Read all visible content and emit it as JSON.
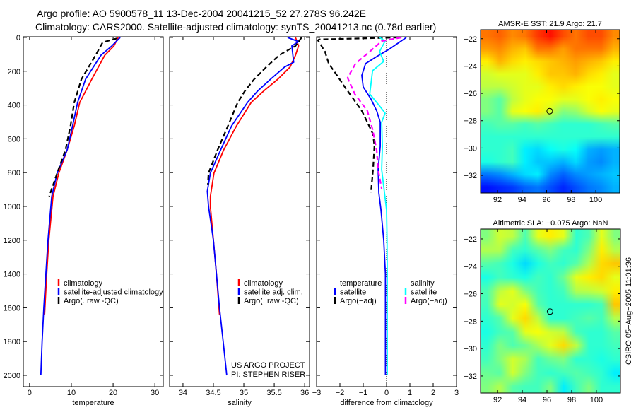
{
  "title": {
    "line1": "Argo profile: AO 5900578_11 13-Dec-2004 20041215_52 27.278S 96.242E",
    "line2": "Climatology: CARS2000. Satellite-adjusted climatology: synTS_20041213.nc (0.78d earlier)"
  },
  "credits": {
    "project": "US ARGO PROJECT",
    "pi": "PI: STEPHEN RISER",
    "stamp": "CSIRO 05−Aug−2005 11:01:36"
  },
  "chart_data": [
    {
      "type": "line",
      "id": "temperature",
      "xlabel": "temperature",
      "ylabel": "",
      "xlim": [
        -1.5,
        32
      ],
      "ylim": [
        2067,
        -4
      ],
      "xticks": [
        0,
        10,
        20,
        30
      ],
      "yticks": [
        0,
        200,
        400,
        600,
        800,
        1000,
        1200,
        1400,
        1600,
        1800,
        2000
      ],
      "legend": {
        "placement": "lower-left",
        "header": ""
      },
      "series": [
        {
          "name": "climatology",
          "color": "#ff0000",
          "dash": false,
          "depth": [
            0,
            50,
            105,
            247,
            385,
            523,
            665,
            803,
            941,
            1200,
            1400,
            1640
          ],
          "values": [
            21.2,
            20.2,
            18.0,
            14.9,
            12.0,
            10.7,
            9.0,
            7.0,
            5.6,
            4.6,
            4.1,
            3.6
          ]
        },
        {
          "name": "satellite-adjusted climatology",
          "color": "#0000ff",
          "dash": false,
          "depth": [
            0,
            50,
            105,
            247,
            385,
            523,
            665,
            803,
            941,
            1200,
            1400,
            1600,
            1800,
            2000
          ],
          "values": [
            21.7,
            19.7,
            17.1,
            13.4,
            11.5,
            10.3,
            9.0,
            6.6,
            5.3,
            4.4,
            3.9,
            3.4,
            3.0,
            2.7
          ]
        },
        {
          "name": "Argo(..raw -QC)",
          "color": "#000000",
          "dash": true,
          "depth": [
            5,
            29,
            105,
            247,
            385,
            523,
            665,
            803,
            941
          ],
          "values": [
            21.0,
            17.5,
            15.8,
            12.4,
            10.7,
            9.8,
            8.6,
            6.6,
            4.7
          ]
        }
      ]
    },
    {
      "type": "line",
      "id": "salinity",
      "xlabel": "salinity",
      "xlim": [
        33.78,
        36.08
      ],
      "ylim": [
        2067,
        -4
      ],
      "xticks": [
        34,
        34.5,
        35,
        35.5,
        36
      ],
      "yticks": [
        0,
        200,
        400,
        600,
        800,
        1000,
        1200,
        1400,
        1600,
        1800,
        2000
      ],
      "legend": {
        "placement": "lower-right",
        "header": ""
      },
      "series": [
        {
          "name": "climatology",
          "color": "#ff0000",
          "dash": false,
          "depth": [
            0,
            50,
            105,
            175,
            247,
            316,
            385,
            523,
            665,
            803,
            941,
            1000,
            1200,
            1400,
            1640
          ],
          "values": [
            35.85,
            35.9,
            35.85,
            35.76,
            35.56,
            35.33,
            35.12,
            34.88,
            34.67,
            34.51,
            34.45,
            34.45,
            34.5,
            34.55,
            34.6
          ]
        },
        {
          "name": "satellite adj. clim.",
          "color": "#0000ff",
          "dash": false,
          "depth": [
            0,
            25,
            50,
            147,
            175,
            247,
            316,
            385,
            523,
            665,
            803,
            910,
            1000,
            1200,
            1400,
            1600,
            1800,
            2000
          ],
          "values": [
            35.72,
            35.9,
            35.79,
            35.82,
            35.67,
            35.44,
            35.23,
            35.06,
            34.8,
            34.62,
            34.45,
            34.4,
            34.42,
            34.5,
            34.55,
            34.6,
            34.66,
            34.72
          ]
        },
        {
          "name": "Argo(..raw -QC)",
          "color": "#000000",
          "dash": true,
          "depth": [
            0,
            50,
            105,
            175,
            247,
            316,
            385,
            523,
            665,
            803,
            870
          ],
          "values": [
            35.95,
            35.85,
            35.58,
            35.37,
            35.17,
            35.02,
            34.9,
            34.74,
            34.57,
            34.42,
            34.41
          ]
        }
      ]
    },
    {
      "type": "line",
      "id": "difference",
      "xlabel": "difference from climatology",
      "xlim": [
        -3,
        3
      ],
      "ylim": [
        2067,
        -4
      ],
      "xticks": [
        -3,
        -2,
        -1,
        0,
        1,
        2,
        3
      ],
      "yticks": [
        0,
        200,
        400,
        600,
        800,
        1000,
        1200,
        1400,
        1600,
        1800,
        2000
      ],
      "zero_line": true,
      "legend_groups": [
        {
          "header": "temperature",
          "placement": "lower-left",
          "items": [
            "satellite",
            "Argo(−adj)"
          ],
          "series_index": [
            0,
            1
          ]
        },
        {
          "header": "salinity",
          "placement": "lower-right",
          "items": [
            "satellite",
            "Argo(−adj)"
          ],
          "series_index": [
            2,
            3
          ]
        }
      ],
      "series": [
        {
          "name": "temperature satellite",
          "color": "#0000ff",
          "dash": false,
          "depth": [
            0,
            71,
            113,
            155,
            225,
            293,
            364,
            435,
            502,
            644,
            782,
            920,
            1020,
            1200,
            1400,
            1600,
            1800,
            2000
          ],
          "values": [
            0.85,
            0.1,
            -0.42,
            -0.9,
            -1.06,
            -1.0,
            -0.67,
            -0.42,
            -0.27,
            -0.27,
            -0.36,
            -0.33,
            -0.24,
            -0.12,
            -0.05,
            -0.05,
            -0.05,
            -0.05
          ]
        },
        {
          "name": "temperature Argo(−adj)",
          "color": "#000000",
          "dash": true,
          "depth": [
            0,
            12,
            17,
            84,
            155,
            225,
            293,
            364,
            435,
            502,
            573,
            644,
            782,
            920
          ],
          "values": [
            0.5,
            -2.9,
            -2.94,
            -2.64,
            -2.48,
            -2.12,
            -1.79,
            -1.42,
            -1.06,
            -0.82,
            -0.58,
            -0.52,
            -0.58,
            -0.67
          ]
        },
        {
          "name": "salinity satellite",
          "color": "#00ffff",
          "dash": false,
          "depth": [
            0,
            21,
            84,
            142,
            197,
            335,
            405,
            448,
            502,
            644,
            782,
            1020,
            1200,
            1400,
            1600,
            1800,
            2000
          ],
          "values": [
            -0.3,
            -0.06,
            -0.3,
            -0.12,
            -0.6,
            -0.72,
            -0.3,
            -0.06,
            -0.21,
            -0.18,
            -0.21,
            0,
            0.02,
            0.03,
            0.03,
            0.03,
            0.03
          ]
        },
        {
          "name": "salinity Argo(−adj)",
          "color": "#ff00ff",
          "dash": true,
          "depth": [
            0,
            21,
            84,
            155,
            239,
            335,
            435,
            544,
            670,
            782,
            895
          ],
          "values": [
            0.64,
            -0.2,
            -0.72,
            -1.33,
            -1.67,
            -1.36,
            -0.82,
            -0.6,
            -0.42,
            -0.36,
            -0.21
          ]
        }
      ]
    },
    {
      "type": "heatmap",
      "id": "sst-map",
      "title": "AMSR-E SST: 21.9 Argo: 21.7",
      "xlim": [
        90.62,
        101.95
      ],
      "ylim": [
        -33.29,
        -21.34
      ],
      "xticks": [
        92,
        94,
        96,
        98,
        100
      ],
      "yticks": [
        -22,
        -24,
        -26,
        -28,
        -30,
        -32
      ],
      "marker": {
        "lon": 96.25,
        "lat": -27.3
      },
      "colormap": "jet",
      "z_normalized": [
        [
          0.76,
          0.78,
          0.74,
          0.76,
          0.82,
          0.86,
          0.8,
          0.76,
          0.8,
          0.8,
          0.74
        ],
        [
          0.72,
          0.74,
          0.7,
          0.68,
          0.76,
          0.76,
          0.72,
          0.76,
          0.76,
          0.76,
          0.7
        ],
        [
          0.64,
          0.7,
          0.66,
          0.64,
          0.66,
          0.68,
          0.7,
          0.72,
          0.7,
          0.68,
          0.64
        ],
        [
          0.58,
          0.6,
          0.6,
          0.6,
          0.64,
          0.68,
          0.68,
          0.7,
          0.66,
          0.64,
          0.6
        ],
        [
          0.56,
          0.56,
          0.58,
          0.6,
          0.6,
          0.64,
          0.66,
          0.64,
          0.62,
          0.62,
          0.6
        ],
        [
          0.5,
          0.46,
          0.56,
          0.6,
          0.62,
          0.62,
          0.6,
          0.6,
          0.62,
          0.64,
          0.62
        ],
        [
          0.5,
          0.46,
          0.6,
          0.62,
          0.64,
          0.58,
          0.5,
          0.52,
          0.58,
          0.62,
          0.6
        ],
        [
          0.44,
          0.46,
          0.46,
          0.44,
          0.46,
          0.44,
          0.42,
          0.42,
          0.42,
          0.44,
          0.46
        ],
        [
          0.42,
          0.42,
          0.42,
          0.42,
          0.42,
          0.42,
          0.42,
          0.42,
          0.42,
          0.42,
          0.42
        ],
        [
          0.42,
          0.42,
          0.44,
          0.36,
          0.34,
          0.38,
          0.4,
          0.38,
          0.3,
          0.28,
          0.3
        ],
        [
          0.4,
          0.42,
          0.44,
          0.36,
          0.32,
          0.32,
          0.3,
          0.34,
          0.28,
          0.26,
          0.3
        ],
        [
          0.24,
          0.26,
          0.3,
          0.34,
          0.36,
          0.26,
          0.22,
          0.26,
          0.28,
          0.3,
          0.32
        ],
        [
          0.14,
          0.16,
          0.18,
          0.22,
          0.24,
          0.2,
          0.16,
          0.2,
          0.24,
          0.26,
          0.3
        ]
      ]
    },
    {
      "type": "heatmap",
      "id": "sla-map",
      "title": "Altimetric SLA: −0.075 Argo: NaN",
      "xlim": [
        90.62,
        101.95
      ],
      "ylim": [
        -33.24,
        -21.28
      ],
      "xticks": [
        92,
        94,
        96,
        98,
        100
      ],
      "yticks": [
        -22,
        -24,
        -26,
        -28,
        -30,
        -32
      ],
      "marker": {
        "lon": 96.25,
        "lat": -27.3
      },
      "colormap": "jet",
      "z_normalized": [
        [
          0.5,
          0.58,
          0.56,
          0.45,
          0.6,
          0.64,
          0.6,
          0.42,
          0.45,
          0.6,
          0.5
        ],
        [
          0.55,
          0.55,
          0.44,
          0.42,
          0.46,
          0.5,
          0.44,
          0.42,
          0.5,
          0.64,
          0.55
        ],
        [
          0.46,
          0.44,
          0.4,
          0.34,
          0.4,
          0.44,
          0.42,
          0.46,
          0.55,
          0.66,
          0.68
        ],
        [
          0.4,
          0.44,
          0.42,
          0.4,
          0.44,
          0.42,
          0.48,
          0.6,
          0.64,
          0.66,
          0.6
        ],
        [
          0.45,
          0.56,
          0.6,
          0.5,
          0.44,
          0.42,
          0.44,
          0.55,
          0.56,
          0.58,
          0.64
        ],
        [
          0.44,
          0.6,
          0.58,
          0.62,
          0.46,
          0.42,
          0.42,
          0.42,
          0.42,
          0.44,
          0.68
        ],
        [
          0.42,
          0.46,
          0.6,
          0.66,
          0.56,
          0.42,
          0.42,
          0.44,
          0.46,
          0.44,
          0.55
        ],
        [
          0.4,
          0.44,
          0.46,
          0.6,
          0.62,
          0.58,
          0.56,
          0.44,
          0.42,
          0.42,
          0.46
        ],
        [
          0.42,
          0.5,
          0.45,
          0.48,
          0.54,
          0.6,
          0.66,
          0.56,
          0.42,
          0.42,
          0.44
        ],
        [
          0.44,
          0.5,
          0.58,
          0.54,
          0.44,
          0.48,
          0.5,
          0.42,
          0.42,
          0.4,
          0.42
        ],
        [
          0.48,
          0.46,
          0.58,
          0.5,
          0.44,
          0.42,
          0.44,
          0.46,
          0.44,
          0.42,
          0.36
        ],
        [
          0.5,
          0.55,
          0.46,
          0.44,
          0.44,
          0.5,
          0.36,
          0.44,
          0.5,
          0.42,
          0.42
        ]
      ]
    }
  ]
}
